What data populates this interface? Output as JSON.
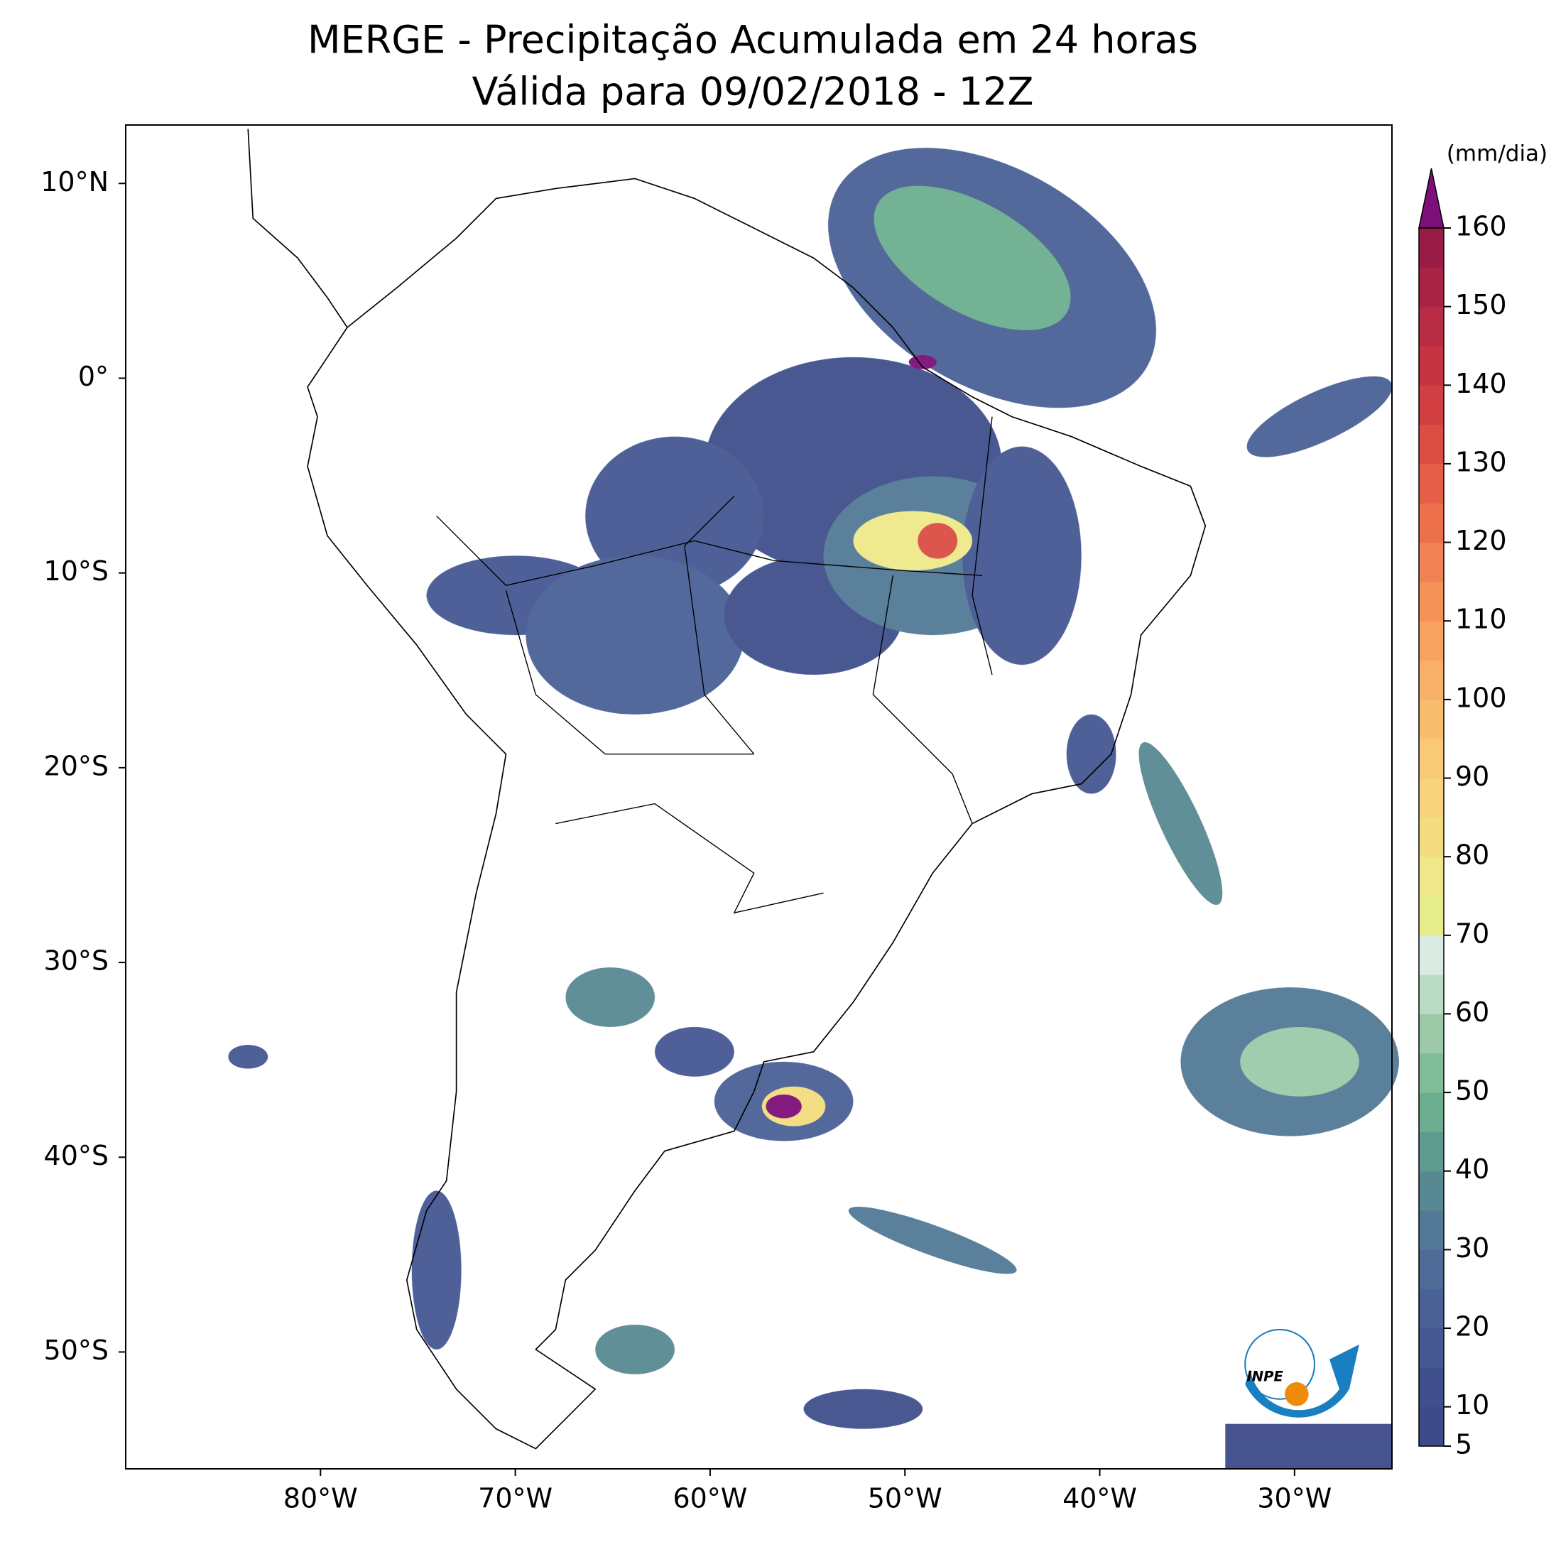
{
  "title": "MERGE - Precipitação Acumulada em 24 horas",
  "subtitle": "Válida para 09/02/2018 - 12Z",
  "map": {
    "lonlim": [
      -90,
      -25
    ],
    "latlim": [
      -56,
      13
    ],
    "lon_ticks": [
      {
        "value": -80,
        "label": "80°W"
      },
      {
        "value": -70,
        "label": "70°W"
      },
      {
        "value": -60,
        "label": "60°W"
      },
      {
        "value": -50,
        "label": "50°W"
      },
      {
        "value": -40,
        "label": "40°W"
      },
      {
        "value": -30,
        "label": "30°W"
      }
    ],
    "lat_ticks": [
      {
        "value": 10,
        "label": "10°N"
      },
      {
        "value": 0,
        "label": "0°"
      },
      {
        "value": -10,
        "label": "10°S"
      },
      {
        "value": -20,
        "label": "20°S"
      },
      {
        "value": -30,
        "label": "30°S"
      },
      {
        "value": -40,
        "label": "40°S"
      },
      {
        "value": -50,
        "label": "50°S"
      }
    ]
  },
  "colorbar": {
    "label": "(mm/dia)",
    "levels": [
      5,
      10,
      15,
      20,
      25,
      30,
      35,
      40,
      45,
      50,
      55,
      60,
      65,
      70,
      75,
      80,
      85,
      90,
      95,
      100,
      105,
      110,
      115,
      120,
      125,
      130,
      135,
      140,
      145,
      150,
      155,
      160
    ],
    "colors": [
      "#3e4a89",
      "#41508d",
      "#455892",
      "#4a6196",
      "#4e6c97",
      "#527a96",
      "#588993",
      "#5f9a8f",
      "#6cae8f",
      "#82bd9b",
      "#9ccaa9",
      "#b9dbc5",
      "#d9ebe2",
      "#e6ee8c",
      "#efe88a",
      "#f3dd80",
      "#f6d37c",
      "#f8c976",
      "#f9bd6e",
      "#f9b068",
      "#f8a261",
      "#f5925a",
      "#f18253",
      "#ec704c",
      "#e55e47",
      "#dc4d44",
      "#d13f42",
      "#c53443",
      "#b72b44",
      "#a92345",
      "#981c46"
    ],
    "extend_color": "#7d0f7a",
    "ticks": [
      5,
      10,
      20,
      30,
      40,
      50,
      60,
      70,
      80,
      90,
      100,
      110,
      120,
      130,
      140,
      150,
      160
    ]
  },
  "logo": "INPE"
}
